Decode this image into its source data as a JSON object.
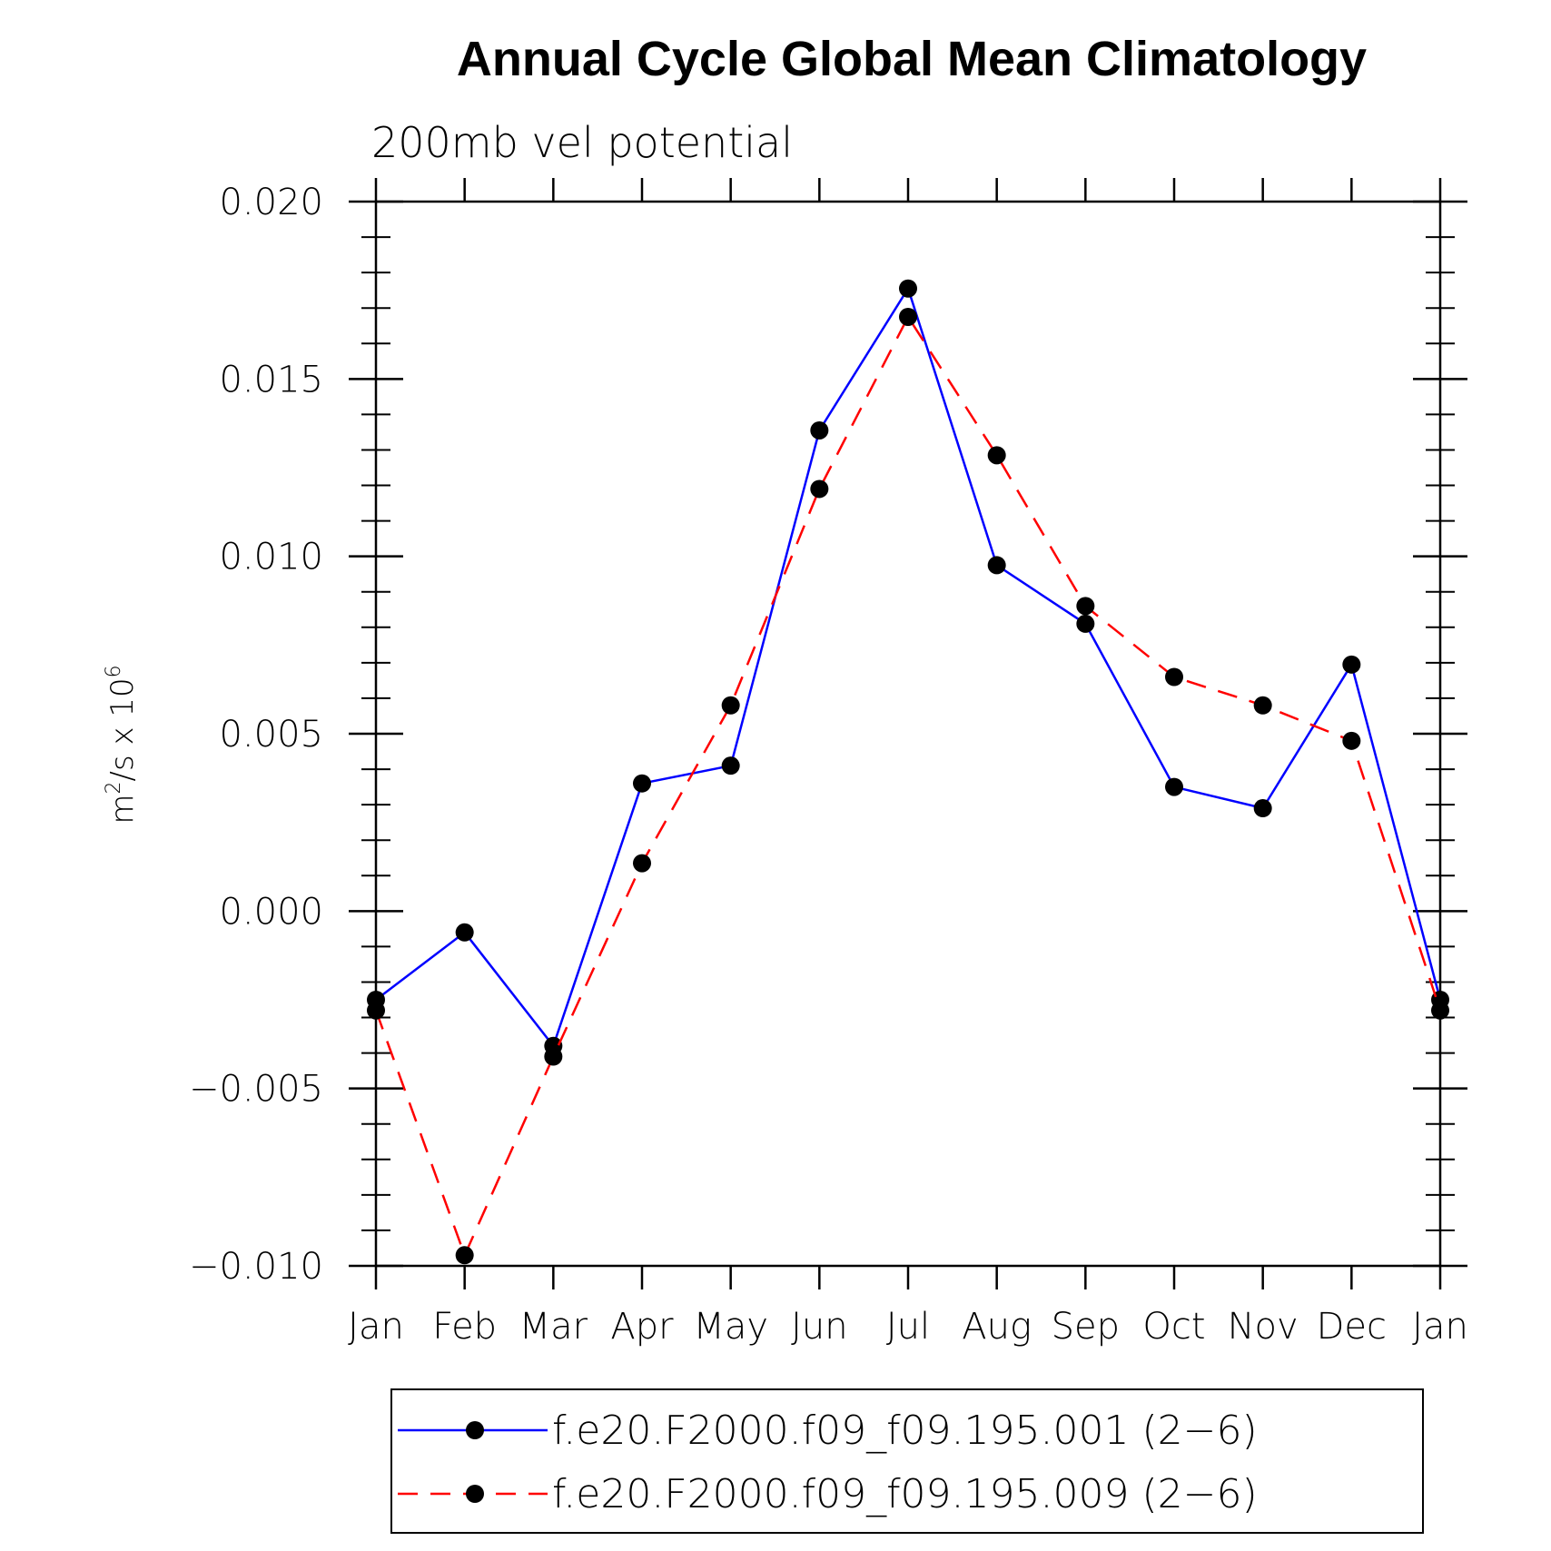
{
  "chart_data": {
    "type": "line",
    "title": "Annual Cycle Global Mean Climatology",
    "subtitle": "200mb vel potential",
    "ylabel": "m²/s x 10⁶",
    "ylabel_base": "m",
    "ylabel_sup1": "2",
    "ylabel_mid": "/s x 10",
    "ylabel_sup2": "6",
    "xlabel": "",
    "categories": [
      "Jan",
      "Feb",
      "Mar",
      "Apr",
      "May",
      "Jun",
      "Jul",
      "Aug",
      "Sep",
      "Oct",
      "Nov",
      "Dec",
      "Jan"
    ],
    "ylim": [
      -0.01,
      0.02
    ],
    "yticks": [
      -0.01,
      -0.005,
      0.0,
      0.005,
      0.01,
      0.015,
      0.02
    ],
    "ytick_labels": [
      "−0.010",
      "−0.005",
      "0.000",
      "0.005",
      "0.010",
      "0.015",
      "0.020"
    ],
    "legend_position": "bottom",
    "series": [
      {
        "name": "f.e20.F2000.f09_f09.195.001 (2−6)",
        "color": "#0000ff",
        "dash": "solid",
        "values": [
          -0.0025,
          -0.0006,
          -0.0038,
          0.0036,
          0.0041,
          0.01355,
          0.01755,
          0.00975,
          0.0081,
          0.0035,
          0.0029,
          0.00695,
          -0.0025
        ]
      },
      {
        "name": "f.e20.F2000.f09_f09.195.009 (2−6)",
        "color": "#ff0000",
        "dash": "dashed",
        "values": [
          -0.0028,
          -0.0097,
          -0.0041,
          0.00135,
          0.0058,
          0.0119,
          0.01675,
          0.01285,
          0.0086,
          0.0066,
          0.0058,
          0.0048,
          -0.0028
        ]
      }
    ]
  }
}
